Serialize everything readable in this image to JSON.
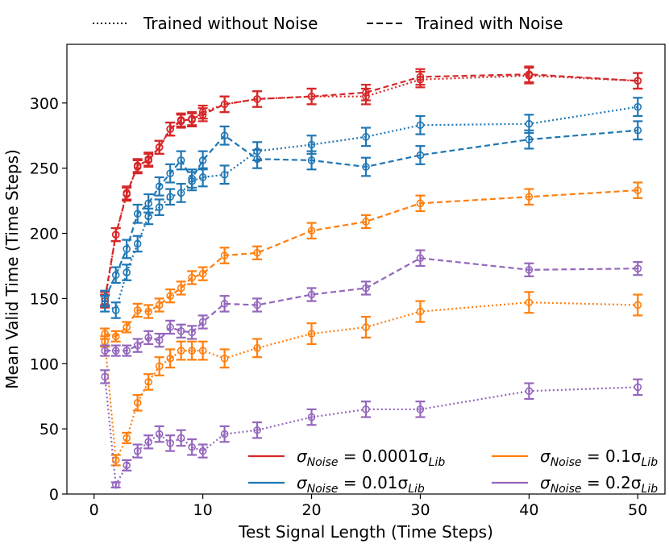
{
  "chart_data": {
    "type": "line",
    "title": "",
    "xlabel": "Test Signal Length (Time Steps)",
    "ylabel": "Mean Valid Time (Time Steps)",
    "xlim": [
      -2.5,
      52.5
    ],
    "ylim": [
      0,
      345
    ],
    "xticks": [
      0,
      10,
      20,
      30,
      40,
      50
    ],
    "yticks": [
      0,
      50,
      100,
      150,
      200,
      250,
      300
    ],
    "grid": false,
    "style_legend": {
      "placement": "top-outside",
      "entries": [
        {
          "label": "Trained without Noise",
          "dash": "dotted"
        },
        {
          "label": "Trained with Noise",
          "dash": "dashed"
        }
      ]
    },
    "noise_legend": {
      "placement": "lower-right",
      "entries": [
        {
          "label_main": "σ",
          "label_sub": "Noise",
          "label_mid": " = 0.0001σ",
          "label_sub2": "Lib",
          "color": "#d62728"
        },
        {
          "label_main": "σ",
          "label_sub": "Noise",
          "label_mid": " = 0.1σ",
          "label_sub2": "Lib",
          "color": "#ff7f0e"
        },
        {
          "label_main": "σ",
          "label_sub": "Noise",
          "label_mid": " = 0.01σ",
          "label_sub2": "Lib",
          "color": "#1f77b4"
        },
        {
          "label_main": "σ",
          "label_sub": "Noise",
          "label_mid": " = 0.2σ",
          "label_sub2": "Lib",
          "color": "#9467bd"
        }
      ]
    },
    "series": [
      {
        "noise": "0.0001",
        "trained": "without",
        "color": "#d62728",
        "dash": "dotted",
        "x": [
          1,
          2,
          3,
          4,
          5,
          6,
          7,
          8,
          9,
          10,
          12,
          15,
          20,
          25,
          30,
          40,
          50
        ],
        "y": [
          148,
          199,
          231,
          251,
          257,
          266,
          280,
          287,
          287,
          293,
          299,
          303,
          305,
          305,
          318,
          321,
          317
        ],
        "err": [
          5,
          5,
          5,
          5,
          5,
          5,
          5,
          5,
          5,
          5,
          6,
          6,
          6,
          6,
          6,
          6,
          6
        ]
      },
      {
        "noise": "0.0001",
        "trained": "with",
        "color": "#d62728",
        "dash": "dashed",
        "x": [
          1,
          2,
          3,
          4,
          5,
          6,
          7,
          8,
          9,
          10,
          12,
          15,
          20,
          25,
          30,
          40,
          50
        ],
        "y": [
          150,
          199,
          230,
          252,
          256,
          266,
          280,
          286,
          288,
          291,
          299,
          303,
          305,
          308,
          320,
          322,
          317
        ],
        "err": [
          5,
          5,
          5,
          5,
          5,
          5,
          5,
          5,
          5,
          5,
          6,
          6,
          6,
          6,
          6,
          6,
          6
        ]
      },
      {
        "noise": "0.01",
        "trained": "without",
        "color": "#1f77b4",
        "dash": "dotted",
        "x": [
          1,
          2,
          3,
          4,
          5,
          6,
          7,
          8,
          9,
          10,
          12,
          15,
          20,
          25,
          30,
          40,
          50
        ],
        "y": [
          146,
          141,
          170,
          192,
          213,
          220,
          228,
          231,
          240,
          243,
          245,
          263,
          268,
          274,
          283,
          284,
          297
        ],
        "err": [
          6,
          6,
          6,
          6,
          6,
          6,
          6,
          7,
          7,
          7,
          7,
          7,
          7,
          7,
          7,
          7,
          7
        ]
      },
      {
        "noise": "0.01",
        "trained": "with",
        "color": "#1f77b4",
        "dash": "dashed",
        "x": [
          1,
          2,
          3,
          4,
          5,
          6,
          7,
          8,
          9,
          10,
          12,
          15,
          20,
          25,
          30,
          40,
          50
        ],
        "y": [
          150,
          168,
          188,
          215,
          223,
          236,
          246,
          256,
          242,
          256,
          275,
          257,
          256,
          251,
          260,
          272,
          279
        ],
        "err": [
          6,
          6,
          7,
          7,
          7,
          7,
          7,
          7,
          7,
          7,
          7,
          7,
          7,
          7,
          7,
          7,
          7
        ]
      },
      {
        "noise": "0.1",
        "trained": "without",
        "color": "#ff7f0e",
        "dash": "dotted",
        "x": [
          1,
          2,
          3,
          4,
          5,
          6,
          7,
          8,
          9,
          10,
          12,
          15,
          20,
          25,
          30,
          40,
          50
        ],
        "y": [
          117,
          26,
          43,
          70,
          86,
          98,
          104,
          110,
          110,
          110,
          104,
          112,
          123,
          128,
          140,
          147,
          145
        ],
        "err": [
          4,
          4,
          4,
          6,
          6,
          7,
          7,
          7,
          7,
          7,
          7,
          7,
          8,
          8,
          8,
          8,
          8
        ]
      },
      {
        "noise": "0.1",
        "trained": "with",
        "color": "#ff7f0e",
        "dash": "dashed",
        "x": [
          1,
          2,
          3,
          4,
          5,
          6,
          7,
          8,
          9,
          10,
          12,
          15,
          20,
          25,
          30,
          40,
          50
        ],
        "y": [
          123,
          121,
          128,
          141,
          140,
          145,
          152,
          158,
          166,
          169,
          183,
          185,
          202,
          209,
          223,
          228,
          233
        ],
        "err": [
          4,
          4,
          4,
          5,
          5,
          5,
          5,
          5,
          5,
          5,
          6,
          5,
          6,
          5,
          6,
          6,
          6
        ]
      },
      {
        "noise": "0.2",
        "trained": "without",
        "color": "#9467bd",
        "dash": "dotted",
        "x": [
          1,
          2,
          3,
          4,
          5,
          6,
          7,
          8,
          9,
          10,
          12,
          15,
          20,
          25,
          30,
          40,
          50
        ],
        "y": [
          90,
          7,
          22,
          33,
          40,
          46,
          39,
          43,
          36,
          33,
          46,
          49,
          59,
          65,
          65,
          79,
          82
        ],
        "err": [
          5,
          2,
          4,
          5,
          5,
          6,
          6,
          6,
          6,
          5,
          6,
          6,
          6,
          6,
          6,
          6,
          6
        ]
      },
      {
        "noise": "0.2",
        "trained": "with",
        "color": "#9467bd",
        "dash": "dashed",
        "x": [
          1,
          2,
          3,
          4,
          5,
          6,
          7,
          8,
          9,
          10,
          12,
          15,
          20,
          25,
          30,
          40,
          50
        ],
        "y": [
          110,
          110,
          110,
          114,
          120,
          118,
          128,
          125,
          124,
          132,
          146,
          145,
          153,
          158,
          181,
          172,
          173
        ],
        "err": [
          4,
          4,
          4,
          5,
          5,
          5,
          5,
          5,
          5,
          5,
          6,
          5,
          5,
          5,
          6,
          5,
          5
        ]
      }
    ]
  }
}
